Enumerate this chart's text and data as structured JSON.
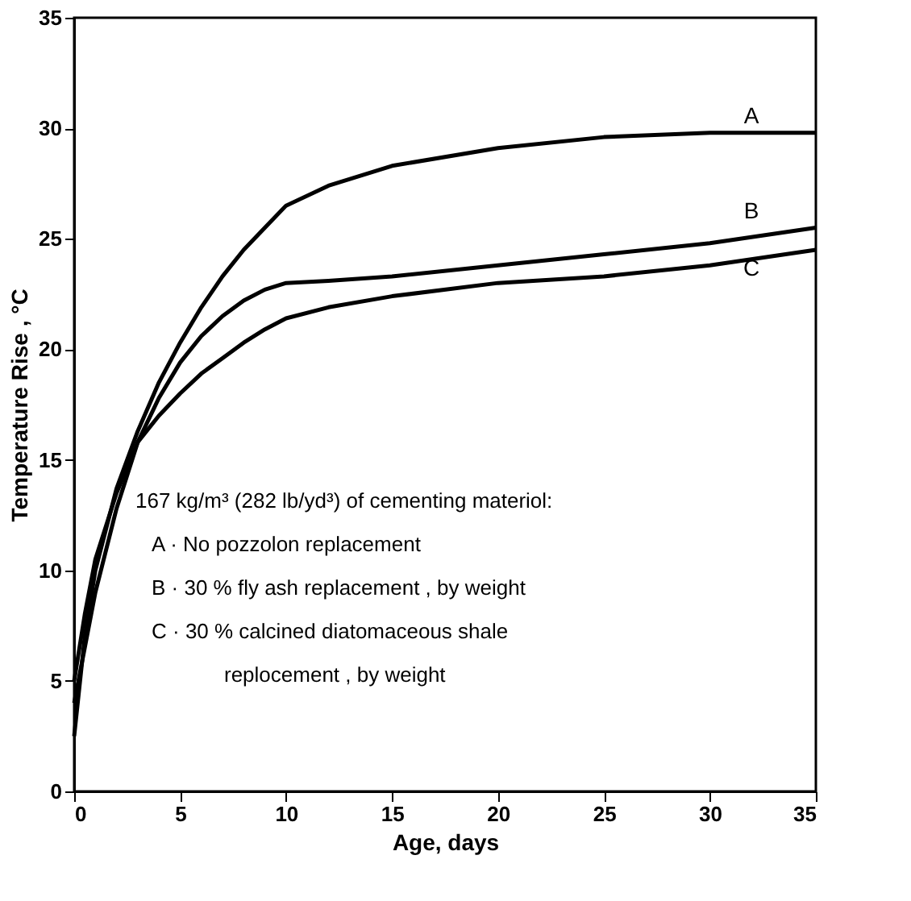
{
  "chart_data": {
    "type": "line",
    "xlabel": "Age, days",
    "ylabel": "Temperature Rise , °C",
    "xlim": [
      0,
      35
    ],
    "ylim": [
      0,
      35
    ],
    "xticks": [
      0,
      5,
      10,
      15,
      20,
      25,
      30,
      35
    ],
    "yticks": [
      0,
      5,
      10,
      15,
      20,
      25,
      30,
      35
    ],
    "grid": false,
    "marker": "none",
    "line_style": "solid",
    "x": [
      0,
      0.5,
      1,
      2,
      3,
      4,
      5,
      6,
      7,
      8,
      9,
      10,
      12,
      15,
      20,
      25,
      30,
      35
    ],
    "series": [
      {
        "name": "A",
        "color": "#000000",
        "values": [
          2.5,
          7,
          10,
          13.7,
          16.3,
          18.5,
          20.3,
          21.9,
          23.3,
          24.5,
          25.5,
          26.5,
          27.4,
          28.3,
          29.1,
          29.6,
          29.8,
          29.8
        ]
      },
      {
        "name": "B",
        "color": "#000000",
        "values": [
          4,
          6.5,
          9,
          12.8,
          15.8,
          17.8,
          19.4,
          20.6,
          21.5,
          22.2,
          22.7,
          23,
          23.1,
          23.3,
          23.8,
          24.3,
          24.8,
          25.5
        ]
      },
      {
        "name": "C",
        "color": "#000000",
        "values": [
          5,
          8,
          10.5,
          13.5,
          15.8,
          17,
          18,
          18.9,
          19.6,
          20.3,
          20.9,
          21.4,
          21.9,
          22.4,
          23,
          23.3,
          23.8,
          24.5
        ]
      }
    ],
    "annotations": [
      "167 kg/m³ (282 lb/yd³) of cementing materiol:",
      "A · No pozzolon replacement",
      "B · 30 % fly ash replacement , by weight",
      "C · 30 % calcined diatomaceous shale",
      "replocement , by weight"
    ]
  }
}
